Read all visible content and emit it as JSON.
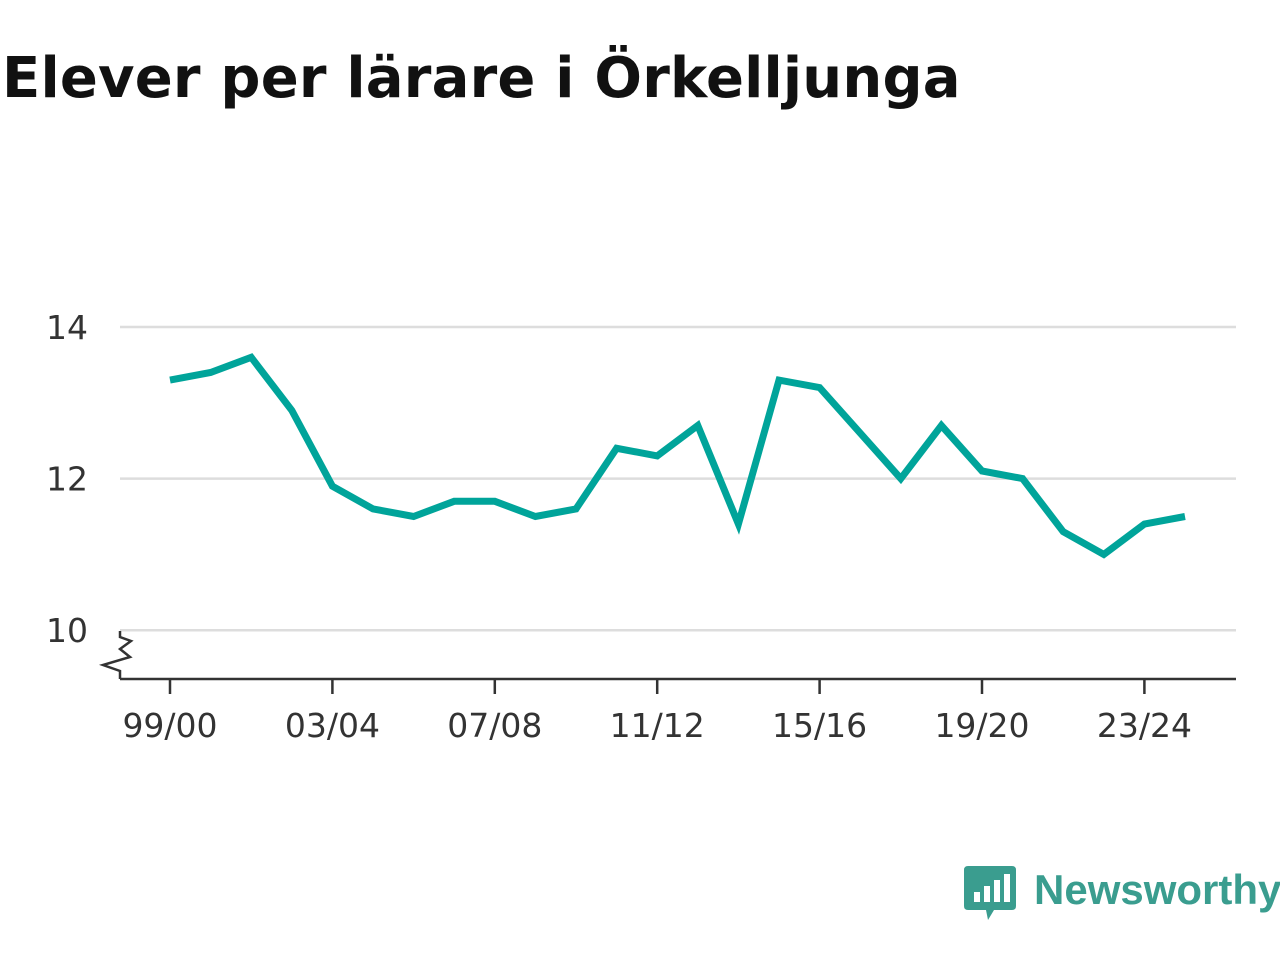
{
  "header": {
    "title": "Elever per lärare i Örkelljunga"
  },
  "chart_data": {
    "type": "line",
    "title": "Elever per lärare i Örkelljunga",
    "xlabel": "",
    "ylabel": "",
    "x": [
      "99/00",
      "00/01",
      "01/02",
      "02/03",
      "03/04",
      "04/05",
      "05/06",
      "06/07",
      "07/08",
      "08/09",
      "09/10",
      "10/11",
      "11/12",
      "12/13",
      "13/14",
      "14/15",
      "15/16",
      "16/17",
      "17/18",
      "18/19",
      "19/20",
      "20/21",
      "21/22",
      "22/23",
      "23/24",
      "24/25"
    ],
    "x_tick_labels": [
      "99/00",
      "03/04",
      "07/08",
      "11/12",
      "15/16",
      "19/20",
      "23/24"
    ],
    "y_tick_labels": [
      "10",
      "12",
      "14"
    ],
    "ylim": [
      9.4,
      14
    ],
    "axis_break": true,
    "grid": true,
    "series": [
      {
        "values": [
          13.3,
          13.4,
          13.6,
          12.9,
          11.9,
          11.6,
          11.5,
          11.7,
          11.7,
          11.5,
          11.6,
          12.4,
          12.3,
          12.7,
          11.4,
          13.3,
          13.2,
          12.6,
          12.0,
          12.7,
          12.1,
          12.0,
          11.3,
          11.0,
          11.4,
          11.5
        ],
        "color": "#00a49a"
      }
    ]
  },
  "branding": {
    "name": "Newsworthy",
    "color": "#3a9d8f"
  }
}
